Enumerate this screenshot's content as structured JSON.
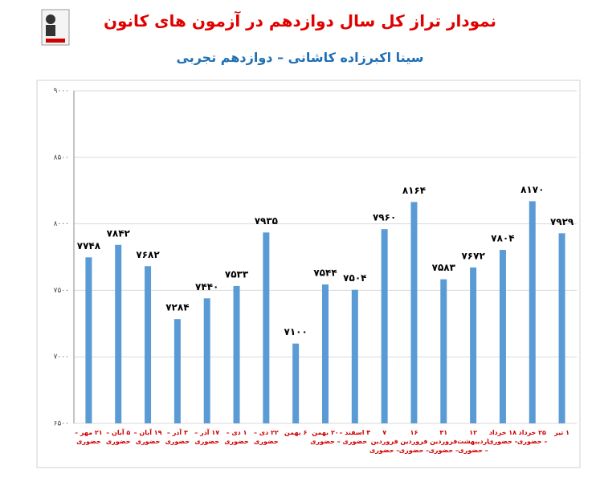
{
  "chart_data": {
    "type": "bar",
    "title": "نمودار تراز کل سال دوازدهم در آزمون های کانون",
    "subtitle": "سینا اکبرزاده کاشانی – دوازدهم تجربی",
    "categories": [
      "۲۱ مهر – حضوری",
      "۵ آبان – حضوری",
      "۱۹ آبان – حضوری",
      "۳ آذر – حضوری",
      "۱۷ آذر – حضوری",
      "۱ دی – حضوری",
      "۲۲ دی – حضوری",
      "۶ بهمن",
      "۲۰ بهمن – حضوری",
      "۴ اسفند – حضوری",
      "۷ فروردین – حضوری",
      "۱۶ فروردین – حضوری",
      "۳۱ فروردین – حضوری",
      "۱۲ اردیبهشت – حضوری",
      "۱۸ خرداد – حضوری",
      "۲۵ خرداد – حضوری",
      "۱ تیر"
    ],
    "values": [
      7748,
      7842,
      7682,
      7284,
      7440,
      7533,
      7935,
      7100,
      7544,
      7504,
      7960,
      8164,
      7583,
      7672,
      7804,
      8170,
      7929
    ],
    "value_labels": [
      "۷۷۴۸",
      "۷۸۴۲",
      "۷۶۸۲",
      "۷۲۸۴",
      "۷۴۴۰",
      "۷۵۳۳",
      "۷۹۳۵",
      "۷۱۰۰",
      "۷۵۴۴",
      "۷۵۰۴",
      "۷۹۶۰",
      "۸۱۶۴",
      "۷۵۸۳",
      "۷۶۷۲",
      "۷۸۰۴",
      "۸۱۷۰",
      "۷۹۲۹"
    ],
    "color": "#5b9bd5",
    "ylim": [
      6500,
      9000
    ],
    "yticks": [
      {
        "value": 6500,
        "label": "۶۵۰۰"
      },
      {
        "value": 7000,
        "label": "۷۰۰۰"
      },
      {
        "value": 7500,
        "label": "۷۵۰۰"
      },
      {
        "value": 8000,
        "label": "۸۰۰۰"
      },
      {
        "value": 8500,
        "label": "۸۵۰۰"
      },
      {
        "value": 9000,
        "label": "۹۰۰۰"
      }
    ],
    "grid": true
  }
}
